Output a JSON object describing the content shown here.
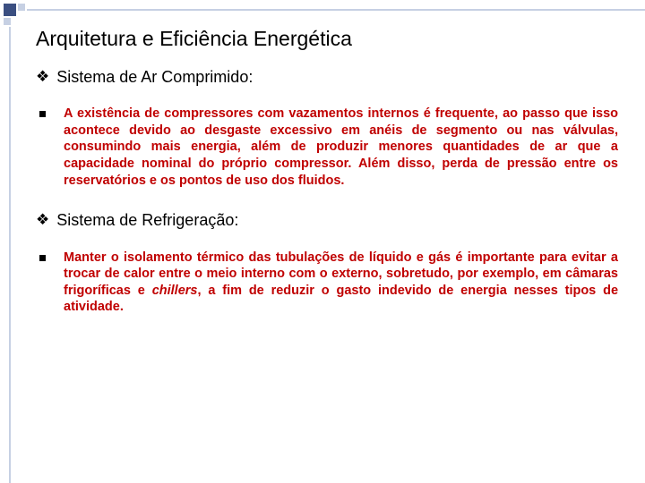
{
  "title": "Arquitetura e Eficiência Energética",
  "sections": [
    {
      "header": "Sistema de Ar Comprimido:",
      "body": "A existência de compressores com vazamentos internos é frequente, ao passo que isso acontece devido ao desgaste excessivo em anéis de segmento ou nas válvulas, consumindo mais energia, além de produzir menores quantidades de ar que a capacidade nominal do próprio compressor. Além disso, perda de pressão entre os reservatórios e os pontos de uso dos fluidos."
    },
    {
      "header": "Sistema de Refrigeração:",
      "body_pre": "Manter o isolamento térmico das tubulações de líquido e gás é importante para evitar a trocar de calor entre o meio interno com o externo, sobretudo, por exemplo, em câmaras frigoríficas e ",
      "body_italic": "chillers",
      "body_post": ", a fim de reduzir o gasto indevido de energia nesses tipos de atividade."
    }
  ],
  "colors": {
    "accent_dark": "#3b4f81",
    "accent_light": "#c6d0e3",
    "body_text": "#c00000"
  }
}
